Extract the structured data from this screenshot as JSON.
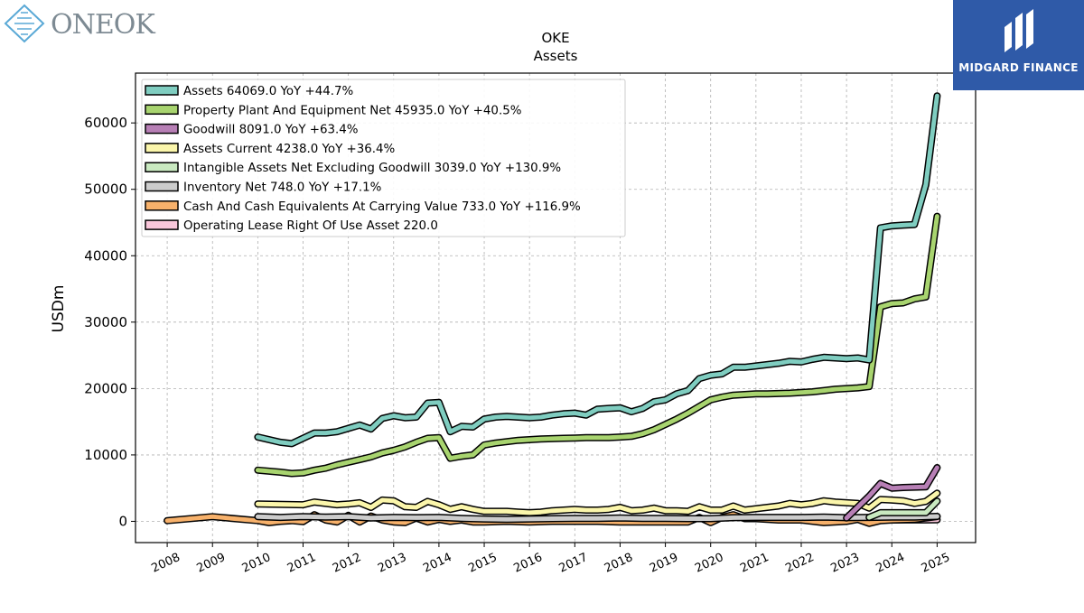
{
  "branding": {
    "company_logo_text": "ONEOK",
    "publisher_text": "MIDGARD FINANCE"
  },
  "chart_data": {
    "type": "line",
    "title": "OKE",
    "subtitle": "Assets",
    "ylabel": "USDm",
    "xlabel": "",
    "xlim": [
      2007.3,
      2025.85
    ],
    "ylim": [
      -3200,
      67500
    ],
    "yticks": [
      0,
      10000,
      20000,
      30000,
      40000,
      50000,
      60000
    ],
    "yticklabels": [
      "0",
      "10000",
      "20000",
      "30000",
      "40000",
      "50000",
      "60000"
    ],
    "xticks": [
      2008,
      2009,
      2010,
      2011,
      2012,
      2013,
      2014,
      2015,
      2016,
      2017,
      2018,
      2019,
      2020,
      2021,
      2022,
      2023,
      2024,
      2025
    ],
    "xticklabels": [
      "2008",
      "2009",
      "2010",
      "2011",
      "2012",
      "2013",
      "2014",
      "2015",
      "2016",
      "2017",
      "2018",
      "2019",
      "2020",
      "2021",
      "2022",
      "2023",
      "2024",
      "2025"
    ],
    "grid": true,
    "legend_position": "top-left",
    "series": [
      {
        "name": "Assets",
        "legend_label": "Assets  64069.0 YoY +44.7%",
        "color": "#7fcdc0",
        "x": [
          2010.0,
          2010.5,
          2010.75,
          2011.0,
          2011.25,
          2011.5,
          2011.75,
          2012.0,
          2012.25,
          2012.5,
          2012.75,
          2013.0,
          2013.25,
          2013.5,
          2013.75,
          2014.0,
          2014.25,
          2014.5,
          2014.75,
          2015.0,
          2015.25,
          2015.5,
          2015.75,
          2016.0,
          2016.25,
          2016.5,
          2016.75,
          2017.0,
          2017.25,
          2017.5,
          2017.75,
          2018.0,
          2018.25,
          2018.5,
          2018.75,
          2019.0,
          2019.25,
          2019.5,
          2019.75,
          2020.0,
          2020.25,
          2020.5,
          2020.75,
          2021.0,
          2021.25,
          2021.5,
          2021.75,
          2022.0,
          2022.25,
          2022.5,
          2022.75,
          2023.0,
          2023.25,
          2023.5,
          2023.75,
          2024.0,
          2024.25,
          2024.5,
          2024.75,
          2025.0
        ],
        "y": [
          12700,
          11900,
          11700,
          12500,
          13300,
          13300,
          13500,
          14000,
          14500,
          13900,
          15500,
          15900,
          15600,
          15700,
          17800,
          17900,
          13500,
          14300,
          14200,
          15400,
          15700,
          15800,
          15700,
          15600,
          15700,
          16000,
          16200,
          16300,
          16000,
          16900,
          17000,
          17100,
          16500,
          17000,
          18000,
          18300,
          19200,
          19700,
          21500,
          22000,
          22200,
          23200,
          23200,
          23400,
          23600,
          23800,
          24100,
          24000,
          24400,
          24700,
          24600,
          24500,
          24600,
          24300,
          44200,
          44500,
          44600,
          44700,
          50700,
          64069
        ]
      },
      {
        "name": "Property Plant And Equipment Net",
        "legend_label": "Property Plant And Equipment Net  45935.0 YoY +40.5%",
        "color": "#a8d46f",
        "x": [
          2010.0,
          2010.5,
          2010.75,
          2011.0,
          2011.25,
          2011.5,
          2011.75,
          2012.0,
          2012.25,
          2012.5,
          2012.75,
          2013.0,
          2013.25,
          2013.5,
          2013.75,
          2014.0,
          2014.25,
          2014.5,
          2014.75,
          2015.0,
          2015.25,
          2015.5,
          2015.75,
          2016.0,
          2016.25,
          2016.5,
          2016.75,
          2017.0,
          2017.25,
          2017.5,
          2017.75,
          2018.0,
          2018.25,
          2018.5,
          2018.75,
          2019.0,
          2019.25,
          2019.5,
          2019.75,
          2020.0,
          2020.25,
          2020.5,
          2020.75,
          2021.0,
          2021.25,
          2021.5,
          2021.75,
          2022.0,
          2022.25,
          2022.5,
          2022.75,
          2023.0,
          2023.25,
          2023.5,
          2023.75,
          2024.0,
          2024.25,
          2024.5,
          2024.75,
          2025.0
        ],
        "y": [
          7700,
          7400,
          7200,
          7300,
          7700,
          8000,
          8500,
          8900,
          9300,
          9700,
          10300,
          10700,
          11200,
          11900,
          12500,
          12600,
          9500,
          9800,
          10000,
          11500,
          11800,
          12000,
          12200,
          12300,
          12400,
          12450,
          12500,
          12550,
          12600,
          12600,
          12600,
          12700,
          12800,
          13200,
          13800,
          14600,
          15400,
          16300,
          17300,
          18300,
          18700,
          19000,
          19100,
          19200,
          19200,
          19250,
          19300,
          19400,
          19500,
          19700,
          19900,
          20000,
          20100,
          20300,
          32300,
          32800,
          32900,
          33500,
          33800,
          45935
        ]
      },
      {
        "name": "Goodwill",
        "legend_label": "Goodwill  8091.0 YoY +63.4%",
        "color": "#b77fb5",
        "x": [
          2023.0,
          2023.5,
          2023.75,
          2024.0,
          2024.25,
          2024.5,
          2024.75,
          2025.0
        ],
        "y": [
          500,
          3800,
          5700,
          5000,
          5100,
          5150,
          5200,
          8091
        ]
      },
      {
        "name": "Assets Current",
        "legend_label": "Assets Current  4238.0 YoY +36.4%",
        "color": "#fbf6ab",
        "x": [
          2010.0,
          2011.0,
          2011.25,
          2011.5,
          2011.75,
          2012.0,
          2012.25,
          2012.5,
          2012.75,
          2013.0,
          2013.25,
          2013.5,
          2013.75,
          2014.0,
          2014.25,
          2014.5,
          2014.75,
          2015.0,
          2015.25,
          2015.5,
          2015.75,
          2016.0,
          2016.25,
          2016.5,
          2016.75,
          2017.0,
          2017.25,
          2017.5,
          2017.75,
          2018.0,
          2018.25,
          2018.5,
          2018.75,
          2019.0,
          2019.25,
          2019.5,
          2019.75,
          2020.0,
          2020.25,
          2020.5,
          2020.75,
          2021.0,
          2021.25,
          2021.5,
          2021.75,
          2022.0,
          2022.25,
          2022.5,
          2022.75,
          2023.0,
          2023.25,
          2023.5,
          2023.75,
          2024.0,
          2024.25,
          2024.5,
          2024.75,
          2025.0
        ],
        "y": [
          2600,
          2500,
          2900,
          2700,
          2500,
          2600,
          2800,
          2100,
          3200,
          3100,
          2200,
          2100,
          3000,
          2500,
          1800,
          2200,
          1800,
          1500,
          1500,
          1500,
          1400,
          1300,
          1400,
          1600,
          1700,
          1800,
          1700,
          1700,
          1800,
          2100,
          1600,
          1700,
          2000,
          1600,
          1600,
          1500,
          2200,
          1700,
          1700,
          2300,
          1700,
          1900,
          2100,
          2300,
          2700,
          2500,
          2700,
          3100,
          2900,
          2800,
          2700,
          2000,
          3300,
          3200,
          3100,
          2700,
          3000,
          4238
        ]
      },
      {
        "name": "Intangible Assets Net Excluding Goodwill",
        "legend_label": "Intangible Assets Net Excluding Goodwill  3039.0 YoY +130.9%",
        "color": "#c9e9c0",
        "x": [
          2023.5,
          2023.75,
          2024.0,
          2024.25,
          2024.5,
          2024.75,
          2025.0
        ],
        "y": [
          600,
          1300,
          1300,
          1300,
          1300,
          1300,
          3039
        ]
      },
      {
        "name": "Inventory Net",
        "legend_label": "Inventory Net  748.0 YoY +17.1%",
        "color": "#cccccc",
        "x": [
          2010.0,
          2010.5,
          2011.0,
          2011.5,
          2012.0,
          2012.5,
          2013.0,
          2013.5,
          2014.0,
          2014.5,
          2015.0,
          2015.5,
          2016.0,
          2016.5,
          2017.0,
          2017.5,
          2018.0,
          2018.5,
          2019.0,
          2019.5,
          2020.0,
          2020.5,
          2021.0,
          2021.5,
          2022.0,
          2022.5,
          2023.0,
          2023.5,
          2024.0,
          2024.5,
          2025.0
        ],
        "y": [
          700,
          600,
          700,
          650,
          700,
          500,
          600,
          550,
          600,
          450,
          350,
          300,
          350,
          400,
          450,
          450,
          500,
          450,
          450,
          400,
          400,
          550,
          600,
          600,
          600,
          650,
          550,
          600,
          650,
          640,
          748
        ]
      },
      {
        "name": "Cash And Cash Equivalents At Carrying Value",
        "legend_label": "Cash And Cash Equivalents At Carrying Value  733.0 YoY +116.9%",
        "color": "#f7b16b",
        "x": [
          2008.0,
          2009.0,
          2010.0,
          2010.25,
          2010.5,
          2010.75,
          2011.0,
          2011.25,
          2011.5,
          2011.75,
          2012.0,
          2012.25,
          2012.5,
          2012.75,
          2013.0,
          2013.25,
          2013.5,
          2013.75,
          2014.0,
          2014.25,
          2014.5,
          2014.75,
          2015.0,
          2015.5,
          2016.0,
          2016.5,
          2017.0,
          2017.5,
          2018.0,
          2018.5,
          2019.0,
          2019.5,
          2019.75,
          2020.0,
          2020.25,
          2020.5,
          2020.75,
          2021.0,
          2021.5,
          2022.0,
          2022.5,
          2023.0,
          2023.25,
          2023.5,
          2023.75,
          2024.0,
          2024.5,
          2025.0
        ],
        "y": [
          100,
          700,
          100,
          -200,
          0,
          100,
          -50,
          1000,
          200,
          -100,
          900,
          -100,
          800,
          200,
          -100,
          -200,
          500,
          -100,
          300,
          0,
          200,
          -100,
          -100,
          0,
          -100,
          0,
          0,
          0,
          -100,
          -100,
          -100,
          -100,
          600,
          -200,
          600,
          1000,
          400,
          400,
          200,
          200,
          -200,
          0,
          300,
          -300,
          100,
          200,
          300,
          733
        ]
      },
      {
        "name": "Operating Lease Right Of Use Asset",
        "legend_label": "Operating Lease Right Of Use Asset  220.0",
        "color": "#f9c6da",
        "x": [
          2023.95,
          2024.25,
          2024.5,
          2024.75,
          2025.0
        ],
        "y": [
          200,
          210,
          215,
          218,
          220
        ]
      }
    ]
  }
}
